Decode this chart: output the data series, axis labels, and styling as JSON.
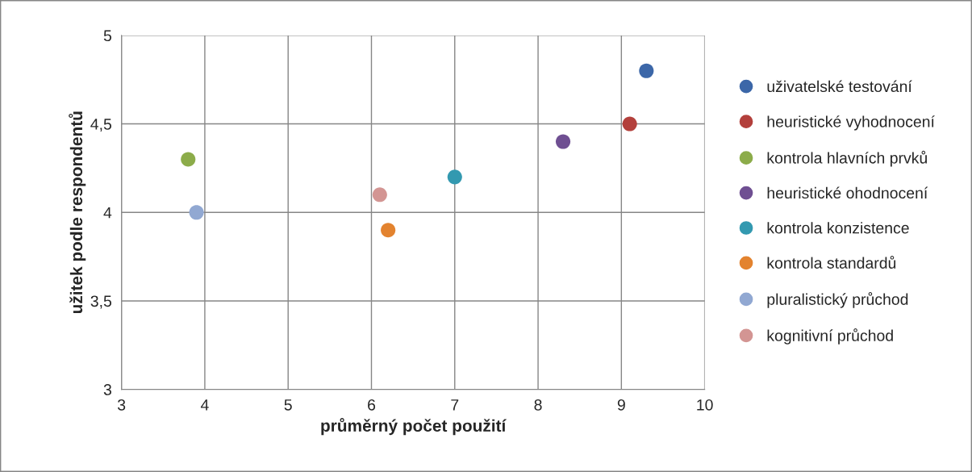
{
  "chart_data": {
    "type": "scatter",
    "xlabel": "průměrný počet použití",
    "ylabel": "užitek podle respondentů",
    "xlim": [
      3,
      10
    ],
    "xticks": [
      3,
      4,
      5,
      6,
      7,
      8,
      9,
      10
    ],
    "ylim": [
      3,
      5
    ],
    "yticks": [
      3,
      {
        "value": 3.5,
        "label": "3,5"
      },
      4,
      {
        "value": 4.5,
        "label": "4,5"
      },
      5
    ],
    "grid": true,
    "legend": "right",
    "marker": "circle",
    "series": [
      {
        "name": "uživatelské testování",
        "color": "#3c67a8",
        "x": [
          9.3
        ],
        "values": [
          4.8
        ]
      },
      {
        "name": "heuristické vyhodnocení",
        "color": "#b3403c",
        "x": [
          9.1
        ],
        "values": [
          4.5
        ]
      },
      {
        "name": "kontrola hlavních prvků",
        "color": "#8cac4a",
        "x": [
          3.8
        ],
        "values": [
          4.3
        ]
      },
      {
        "name": "heuristické ohodnocení",
        "color": "#6f4f92",
        "x": [
          8.3
        ],
        "values": [
          4.4
        ]
      },
      {
        "name": "kontrola konzistence",
        "color": "#3399b0",
        "x": [
          7.0
        ],
        "values": [
          4.2
        ]
      },
      {
        "name": "kontrola standardů",
        "color": "#e3832f",
        "x": [
          6.2
        ],
        "values": [
          3.9
        ]
      },
      {
        "name": "pluralistický průchod",
        "color": "#91a8d2",
        "x": [
          3.9
        ],
        "values": [
          4.0
        ]
      },
      {
        "name": "kognitivní průchod",
        "color": "#d39593",
        "x": [
          6.1
        ],
        "values": [
          4.1
        ]
      }
    ]
  }
}
